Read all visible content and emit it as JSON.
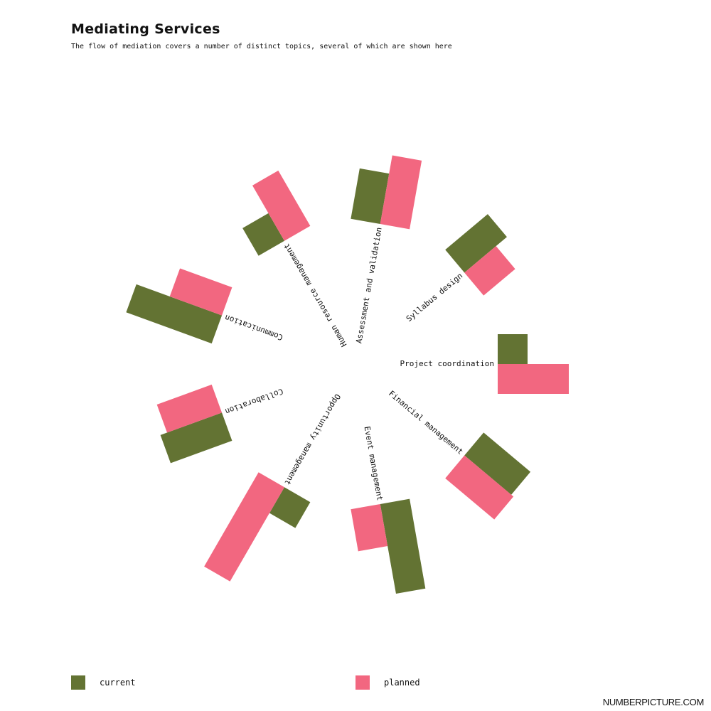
{
  "title": "Mediating Services",
  "subtitle": "The flow of mediation covers a number of distinct topics, several of which are shown here",
  "chart_data": {
    "type": "bar",
    "layout": "radial",
    "categories": [
      "Project coordination",
      "Syllabus design",
      "Assessment and validation",
      "Human resource management",
      "Communication",
      "Collaboration",
      "Opportunity management",
      "Event management",
      "Financial management"
    ],
    "series": [
      {
        "name": "current",
        "values": [
          42,
          78,
          72,
          45,
          128,
          92,
          42,
          128,
          86
        ]
      },
      {
        "name": "planned",
        "values": [
          100,
          58,
          98,
          90,
          78,
          82,
          153,
          60,
          90
        ]
      }
    ]
  },
  "legend": {
    "current": {
      "label": "current",
      "color": "#637333"
    },
    "planned": {
      "label": "planned",
      "color": "#f26780"
    }
  },
  "brand": "NUMBERPICTURE.COM"
}
